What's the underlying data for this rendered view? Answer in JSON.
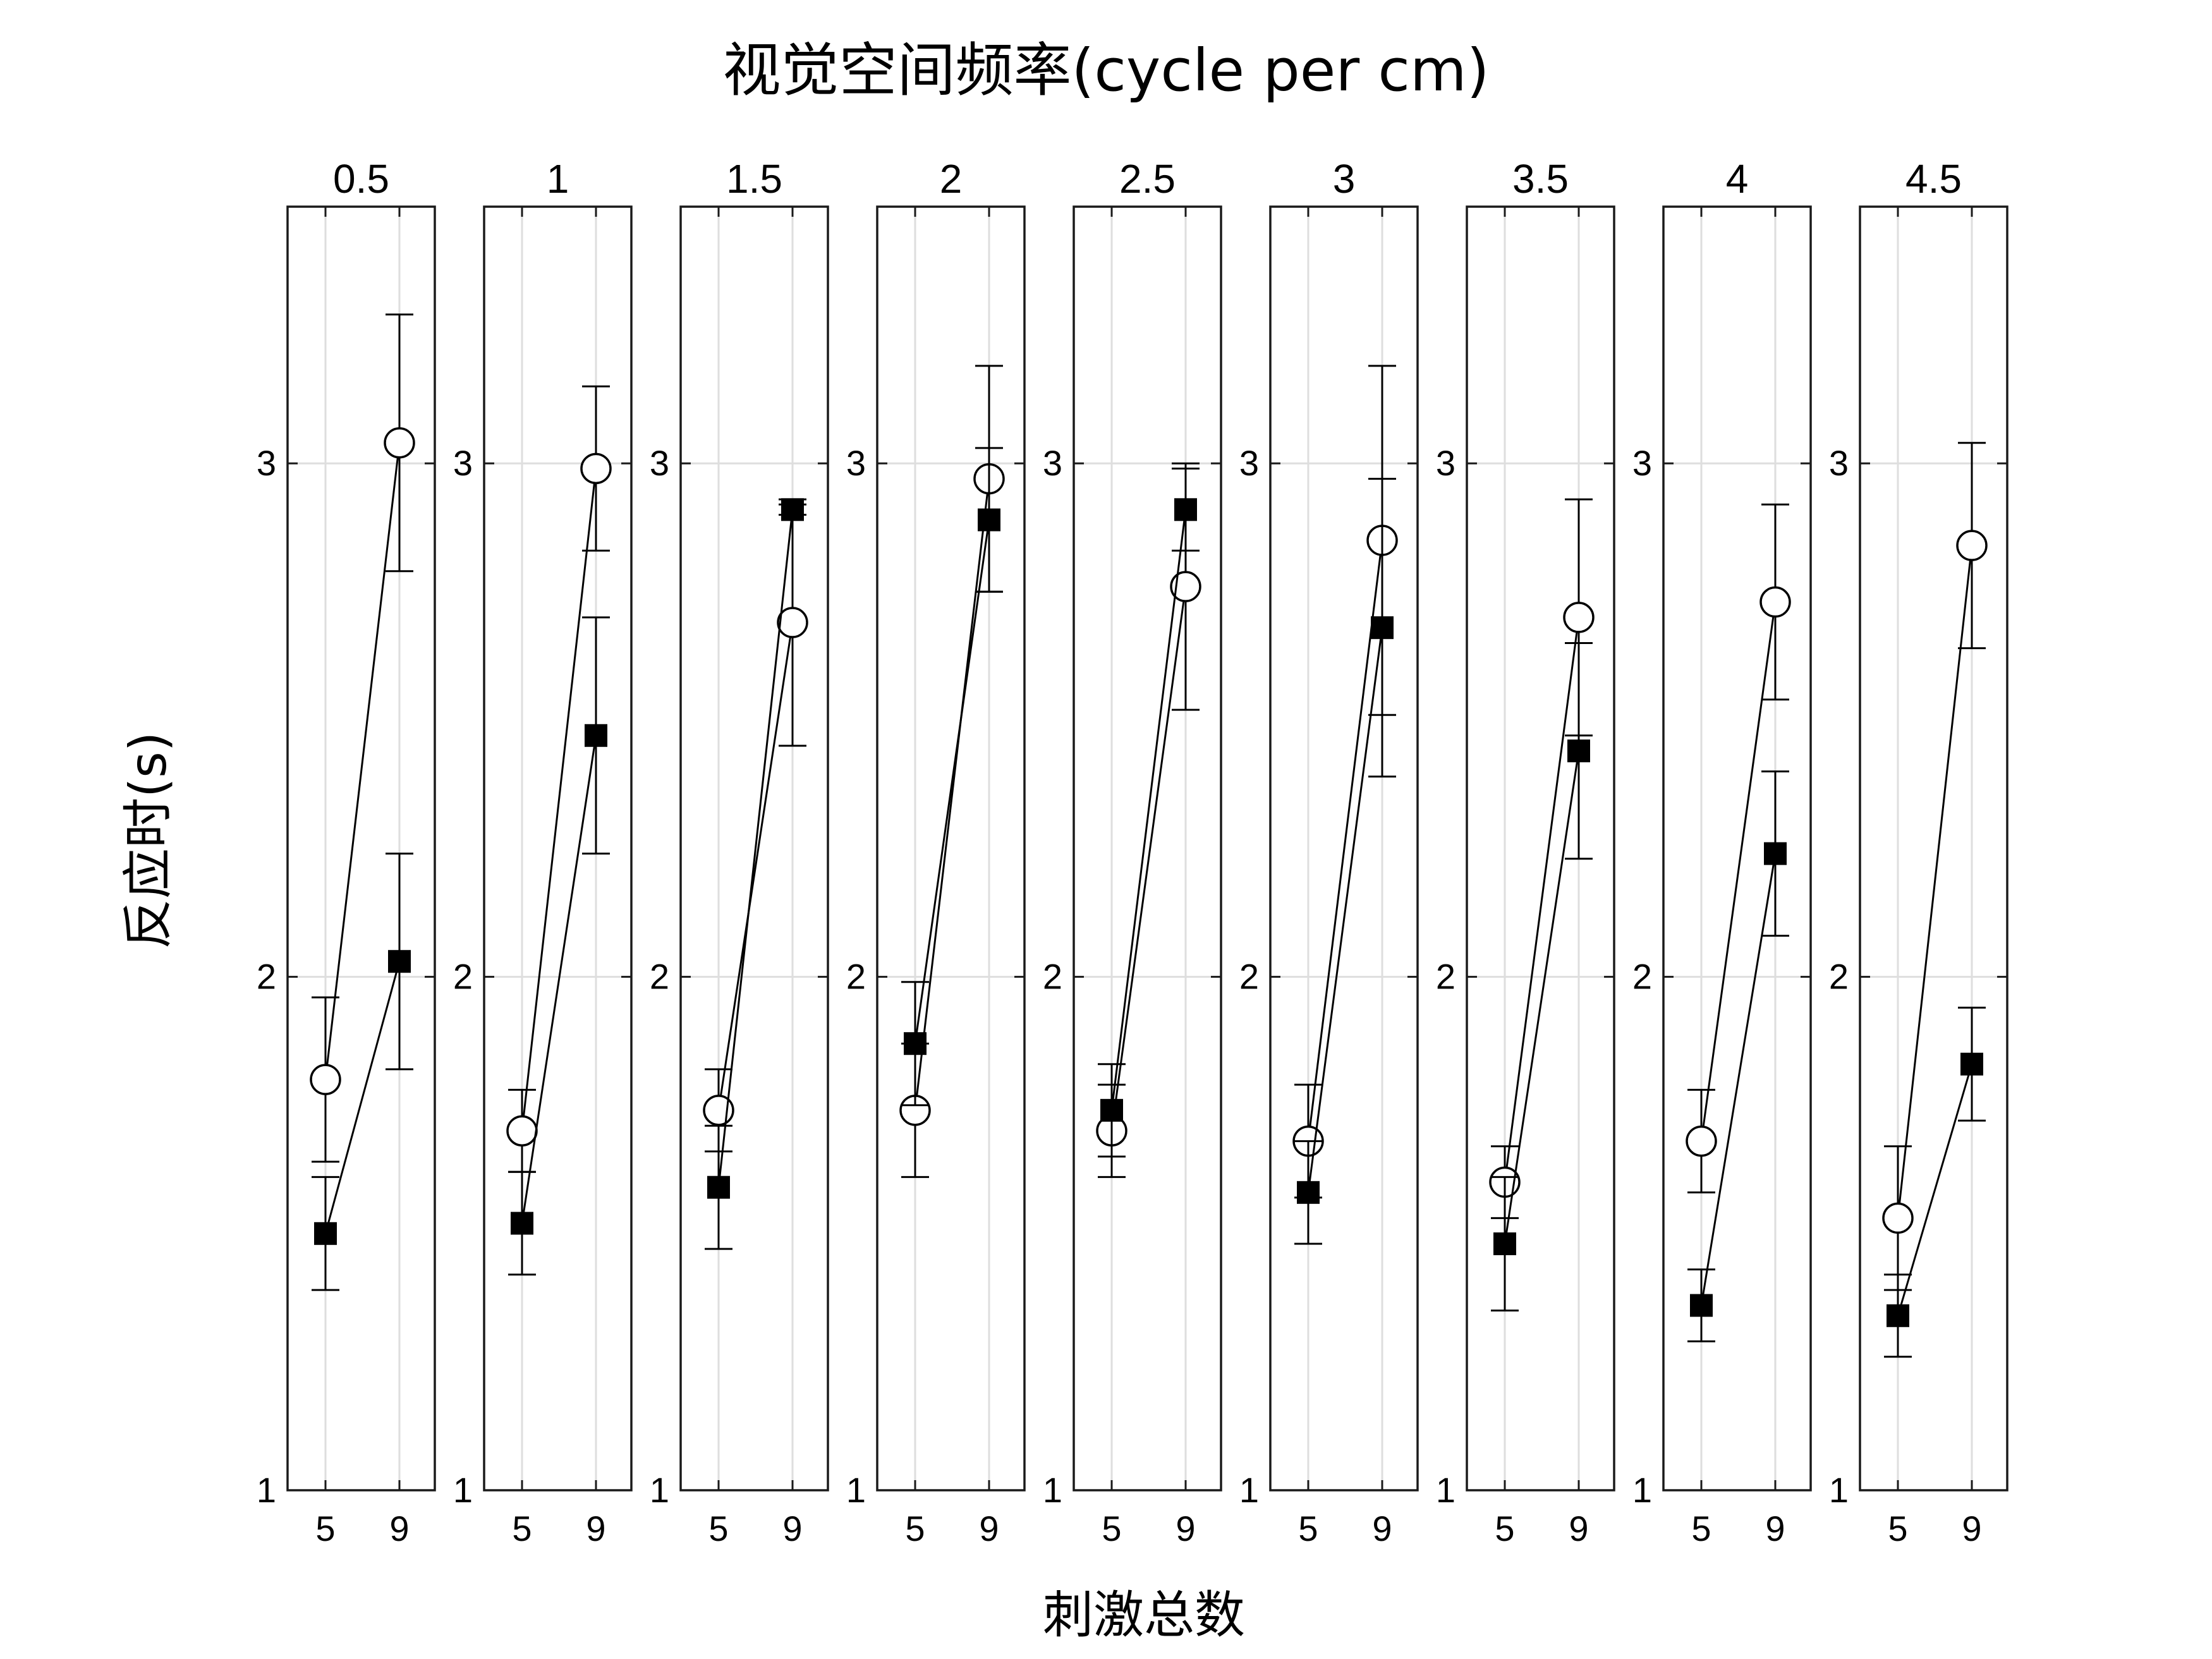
{
  "chart_data": {
    "type": "scatter",
    "title": "视觉空间频率(cycle per cm)",
    "xlabel": "刺激总数",
    "ylabel": "反应时(s)",
    "ylim": [
      1,
      3.5
    ],
    "yticks": [
      "1",
      "2",
      "3"
    ],
    "xticks": [
      "5",
      "9"
    ],
    "grid": true,
    "panels": [
      {
        "title": "0.5",
        "series": [
          {
            "marker": "open-circle",
            "x": [
              5,
              9
            ],
            "y": [
              1.8,
              3.04
            ],
            "err": [
              0.16,
              0.25
            ]
          },
          {
            "marker": "filled-square",
            "x": [
              5,
              9
            ],
            "y": [
              1.5,
              2.03
            ],
            "err": [
              0.11,
              0.21
            ]
          }
        ]
      },
      {
        "title": "1",
        "series": [
          {
            "marker": "open-circle",
            "x": [
              5,
              9
            ],
            "y": [
              1.7,
              2.99
            ],
            "err": [
              0.08,
              0.16
            ]
          },
          {
            "marker": "filled-square",
            "x": [
              5,
              9
            ],
            "y": [
              1.52,
              2.47
            ],
            "err": [
              0.1,
              0.23
            ]
          }
        ]
      },
      {
        "title": "1.5",
        "series": [
          {
            "marker": "open-circle",
            "x": [
              5,
              9
            ],
            "y": [
              1.74,
              2.69
            ],
            "err": [
              0.08,
              0.24
            ]
          },
          {
            "marker": "filled-square",
            "x": [
              5,
              9
            ],
            "y": [
              1.59,
              2.91
            ],
            "err": [
              0.12,
              0.01
            ]
          }
        ]
      },
      {
        "title": "2",
        "series": [
          {
            "marker": "open-circle",
            "x": [
              5,
              9
            ],
            "y": [
              1.74,
              2.97
            ],
            "err": [
              0.13,
              0.22
            ]
          },
          {
            "marker": "filled-square",
            "x": [
              5,
              9
            ],
            "y": [
              1.87,
              2.89
            ],
            "err": [
              0.12,
              0.14
            ]
          }
        ]
      },
      {
        "title": "2.5",
        "series": [
          {
            "marker": "open-circle",
            "x": [
              5,
              9
            ],
            "y": [
              1.7,
              2.76
            ],
            "err": [
              0.09,
              0.24
            ]
          },
          {
            "marker": "filled-square",
            "x": [
              5,
              9
            ],
            "y": [
              1.74,
              2.91
            ],
            "err": [
              0.09,
              0.08
            ]
          }
        ]
      },
      {
        "title": "3",
        "series": [
          {
            "marker": "open-circle",
            "x": [
              5,
              9
            ],
            "y": [
              1.68,
              2.85
            ],
            "err": [
              0.11,
              0.34
            ]
          },
          {
            "marker": "filled-square",
            "x": [
              5,
              9
            ],
            "y": [
              1.58,
              2.68
            ],
            "err": [
              0.1,
              0.29
            ]
          }
        ]
      },
      {
        "title": "3.5",
        "series": [
          {
            "marker": "open-circle",
            "x": [
              5,
              9
            ],
            "y": [
              1.6,
              2.7
            ],
            "err": [
              0.07,
              0.23
            ]
          },
          {
            "marker": "filled-square",
            "x": [
              5,
              9
            ],
            "y": [
              1.48,
              2.44
            ],
            "err": [
              0.13,
              0.21
            ]
          }
        ]
      },
      {
        "title": "4",
        "series": [
          {
            "marker": "open-circle",
            "x": [
              5,
              9
            ],
            "y": [
              1.68,
              2.73
            ],
            "err": [
              0.1,
              0.19
            ]
          },
          {
            "marker": "filled-square",
            "x": [
              5,
              9
            ],
            "y": [
              1.36,
              2.24
            ],
            "err": [
              0.07,
              0.16
            ]
          }
        ]
      },
      {
        "title": "4.5",
        "series": [
          {
            "marker": "open-circle",
            "x": [
              5,
              9
            ],
            "y": [
              1.53,
              2.84
            ],
            "err": [
              0.14,
              0.2
            ]
          },
          {
            "marker": "filled-square",
            "x": [
              5,
              9
            ],
            "y": [
              1.34,
              1.83
            ],
            "err": [
              0.08,
              0.11
            ]
          }
        ]
      }
    ]
  }
}
